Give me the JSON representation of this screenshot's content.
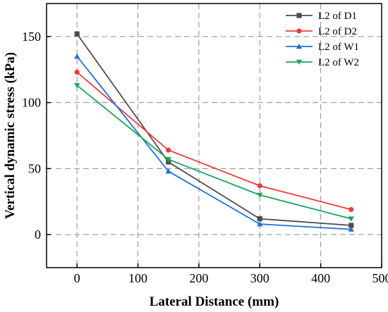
{
  "chart_data": {
    "type": "line",
    "title": "",
    "xlabel": "Lateral Distance (mm)",
    "ylabel": "Vertical dynamic stress (kPa)",
    "xlim": [
      -50,
      500
    ],
    "ylim": [
      -25,
      175
    ],
    "xticks": [
      0,
      100,
      200,
      300,
      400,
      500
    ],
    "yticks": [
      0,
      50,
      100,
      150
    ],
    "grid": true,
    "legend_position": "top-right",
    "x": [
      0,
      150,
      300,
      450
    ],
    "series": [
      {
        "name": "L2 of D1",
        "values": [
          152,
          55,
          12,
          7
        ],
        "color": "#4d4d4d",
        "marker": "square"
      },
      {
        "name": "L2 of D2",
        "values": [
          123,
          64,
          37,
          19
        ],
        "color": "#ef3b3b",
        "marker": "circle"
      },
      {
        "name": "L2 of W1",
        "values": [
          135,
          48,
          8,
          4
        ],
        "color": "#1f6fd6",
        "marker": "triangle-up"
      },
      {
        "name": "L2 of W2",
        "values": [
          113,
          57,
          30,
          12
        ],
        "color": "#1aa55a",
        "marker": "triangle-down"
      }
    ]
  }
}
